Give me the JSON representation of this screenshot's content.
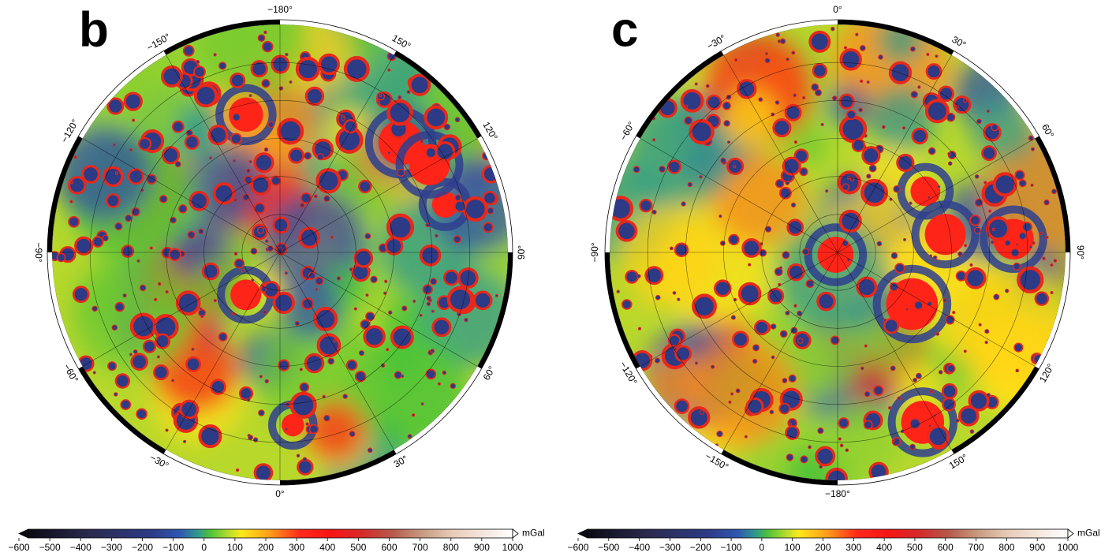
{
  "panels": [
    {
      "label": "b",
      "zero_at": "bottom",
      "longitudes": [
        {
          "value": -180,
          "label": "−180°"
        },
        {
          "value": 150,
          "label": "150°"
        },
        {
          "value": 120,
          "label": "120°"
        },
        {
          "value": 90,
          "label": "90°"
        },
        {
          "value": 60,
          "label": "60°"
        },
        {
          "value": 30,
          "label": "30°"
        },
        {
          "value": 0,
          "label": "0°"
        },
        {
          "value": -30,
          "label": "−30°"
        },
        {
          "value": -60,
          "label": "−60°"
        },
        {
          "value": -90,
          "label": "−90°"
        },
        {
          "value": -120,
          "label": "−120°"
        },
        {
          "value": -150,
          "label": "−150°"
        }
      ],
      "colorbar": {
        "range": [
          -600,
          1000
        ],
        "unit": "mGal",
        "ticks": [
          {
            "value": -600,
            "label": "−600"
          },
          {
            "value": -500,
            "label": "−500"
          },
          {
            "value": -400,
            "label": "−400"
          },
          {
            "value": -300,
            "label": "−300"
          },
          {
            "value": -200,
            "label": "−200"
          },
          {
            "value": -100,
            "label": "−100"
          },
          0,
          100,
          200,
          300,
          400,
          500,
          600,
          700,
          800,
          900,
          1000
        ]
      }
    },
    {
      "label": "c",
      "zero_at": "top",
      "longitudes": [
        {
          "value": 0,
          "label": "0°"
        },
        {
          "value": 30,
          "label": "30°"
        },
        {
          "value": 60,
          "label": "60°"
        },
        {
          "value": 90,
          "label": "90°"
        },
        {
          "value": 120,
          "label": "120°"
        },
        {
          "value": 150,
          "label": "150°"
        },
        {
          "value": -180,
          "label": "−180°"
        },
        {
          "value": -150,
          "label": "−150°"
        },
        {
          "value": -120,
          "label": "−120°"
        },
        {
          "value": -90,
          "label": "−90°"
        },
        {
          "value": -60,
          "label": "−60°"
        },
        {
          "value": -30,
          "label": "−30°"
        }
      ],
      "colorbar": {
        "range": [
          -600,
          1000
        ],
        "unit": "mGal",
        "ticks": [
          {
            "value": -600,
            "label": "−600"
          },
          {
            "value": -500,
            "label": "−500"
          },
          {
            "value": -400,
            "label": "−400"
          },
          {
            "value": -300,
            "label": "−300"
          },
          {
            "value": -200,
            "label": "−200"
          },
          {
            "value": -100,
            "label": "−100"
          },
          0,
          100,
          200,
          300,
          400,
          500,
          600,
          700,
          800,
          900,
          1000
        ]
      }
    }
  ]
}
